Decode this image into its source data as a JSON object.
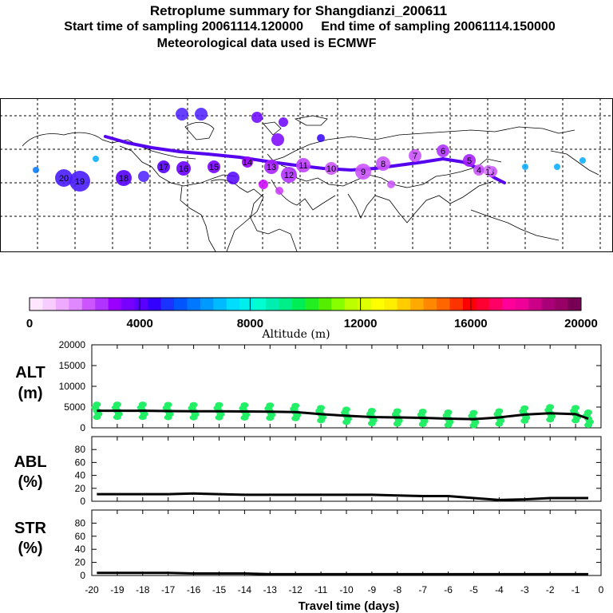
{
  "header": {
    "title": "Retroplume summary for Shangdianzi_200611",
    "sampling": "Start time of sampling 20061114.120000     End time of sampling 20061114.150000",
    "met": "Meteorological data used is ECMWF"
  },
  "colors": {
    "trajectory": "#5500ee",
    "alt_scatter": "#22ee66",
    "colorbar": [
      "#ffe6ff",
      "#f7ccff",
      "#eeaaff",
      "#e088ff",
      "#cc55ff",
      "#b033ff",
      "#9900ff",
      "#7700ff",
      "#5a00ff",
      "#3300ff",
      "#1a33ff",
      "#0055ff",
      "#0077ff",
      "#0099ff",
      "#00bbff",
      "#00ddff",
      "#00eeee",
      "#00ffd0",
      "#00eeb0",
      "#00ee88",
      "#00ee55",
      "#22ee22",
      "#55ee00",
      "#88ff00",
      "#bbff00",
      "#ddff00",
      "#ffff00",
      "#ffee00",
      "#ffcc00",
      "#ffaa00",
      "#ff8800",
      "#ff6600",
      "#ff3300",
      "#ff0000",
      "#ff0033",
      "#ff0066",
      "#ff0099",
      "#ee0099",
      "#cc0088",
      "#aa0077",
      "#990066",
      "#770055"
    ]
  },
  "colorbar": {
    "ticks": [
      "0",
      "4000",
      "8000",
      "12000",
      "16000",
      "20000"
    ],
    "label": "Altitude (m)"
  },
  "map": {
    "labels": [
      {
        "t": "20"
      },
      {
        "t": "19"
      },
      {
        "t": "18"
      },
      {
        "t": "17"
      },
      {
        "t": "16"
      },
      {
        "t": "15"
      },
      {
        "t": "14"
      },
      {
        "t": "13"
      },
      {
        "t": "12"
      },
      {
        "t": "11"
      },
      {
        "t": "10"
      },
      {
        "t": "9"
      },
      {
        "t": "8"
      },
      {
        "t": "7"
      },
      {
        "t": "6"
      },
      {
        "t": "5"
      },
      {
        "t": "4"
      },
      {
        "t": "3"
      },
      {
        "t": "2"
      },
      {
        "t": "1"
      }
    ]
  },
  "chart_data": [
    {
      "type": "line",
      "panel": "ALT",
      "ylabel": "ALT (m)",
      "ylim": [
        0,
        20000
      ],
      "yticks": [
        "20000",
        "15000",
        "10000",
        "5000",
        "0"
      ],
      "x": [
        -19.8,
        -19,
        -18,
        -17,
        -16,
        -15,
        -14,
        -13,
        -12,
        -11,
        -10,
        -9,
        -8,
        -7,
        -6,
        -5,
        -4,
        -3,
        -2,
        -1,
        -0.5
      ],
      "values": [
        4100,
        4100,
        4100,
        4050,
        4000,
        4000,
        3950,
        3900,
        3800,
        3300,
        2900,
        2600,
        2500,
        2400,
        2200,
        2100,
        2500,
        3200,
        3500,
        3300,
        2200
      ]
    },
    {
      "type": "line",
      "panel": "ABL",
      "ylabel": "ABL (%)",
      "ylim": [
        0,
        100
      ],
      "yticks": [
        "80",
        "60",
        "40",
        "20",
        "0"
      ],
      "x": [
        -19.8,
        -19,
        -18,
        -17,
        -16,
        -15,
        -14,
        -13,
        -12,
        -11,
        -10,
        -9,
        -8,
        -7,
        -6,
        -5,
        -4,
        -3,
        -2,
        -1,
        -0.5
      ],
      "values": [
        11,
        11,
        11,
        11,
        12,
        11,
        10,
        10,
        10,
        10,
        10,
        10,
        9,
        8,
        8,
        5,
        2,
        3,
        5,
        5,
        5
      ]
    },
    {
      "type": "line",
      "panel": "STR",
      "ylabel": "STR (%)",
      "ylim": [
        0,
        100
      ],
      "yticks": [
        "80",
        "60",
        "40",
        "20",
        "0"
      ],
      "x": [
        -19.8,
        -19,
        -18,
        -17,
        -16,
        -15,
        -14,
        -13,
        -12,
        -11,
        -10,
        -9,
        -8,
        -7,
        -6,
        -5,
        -4,
        -3,
        -2,
        -1,
        -0.5
      ],
      "values": [
        4,
        4,
        4,
        4,
        3,
        3,
        3,
        2,
        2,
        2,
        2,
        2,
        2,
        2,
        2,
        2,
        2,
        2,
        2,
        2,
        2
      ],
      "xlabel": "Travel time (days)",
      "xticks": [
        "-20",
        "-19",
        "-18",
        "-17",
        "-16",
        "-15",
        "-14",
        "-13",
        "-12",
        "-11",
        "-10",
        "-9",
        "-8",
        "-7",
        "-6",
        "-5",
        "-4",
        "-3",
        "-2",
        "-1",
        "0"
      ]
    }
  ]
}
